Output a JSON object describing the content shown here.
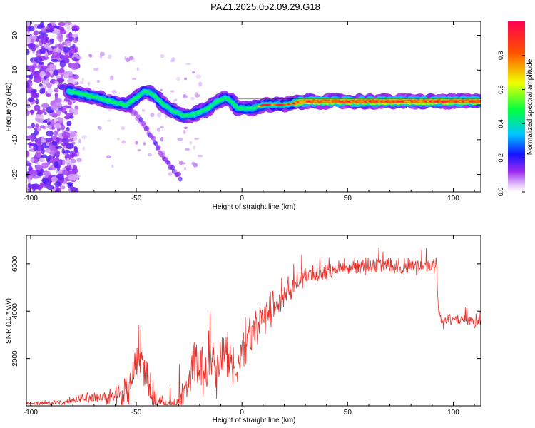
{
  "title": "PAZ1.2025.052.09.29.G18",
  "chart_data": [
    {
      "type": "heatmap",
      "xlabel": "Height of straight line (km)",
      "ylabel": "Frequency (Hz)",
      "xlim": [
        -102,
        113
      ],
      "ylim": [
        -25,
        24
      ],
      "xticks": [
        -100,
        -50,
        0,
        50,
        100
      ],
      "yticks": [
        -20,
        -10,
        0,
        10,
        20
      ],
      "colorbar": {
        "label": "Normalized spectral amplitude",
        "range": [
          0.0,
          1.0
        ],
        "ticks": [
          0.0,
          0.2,
          0.4,
          0.6,
          0.8
        ],
        "colors": [
          "#ffffff",
          "#cfa3f5",
          "#9c2bf0",
          "#1414ff",
          "#00c8ff",
          "#00ff40",
          "#f0ff00",
          "#ff5000",
          "#ff0050"
        ]
      },
      "ridge": {
        "x": [
          -82,
          -75,
          -68,
          -62,
          -55,
          -50,
          -46,
          -42,
          -37,
          -32,
          -28,
          -24,
          -20,
          -16,
          -12,
          -8,
          -5,
          -2,
          0,
          5,
          10,
          20,
          30,
          40,
          50,
          60,
          70,
          80,
          90,
          100,
          113
        ],
        "y": [
          4,
          3,
          2,
          1,
          0,
          2,
          4,
          3,
          0,
          -2,
          -3,
          -3,
          -2,
          -1,
          1,
          2,
          1,
          -1,
          -1,
          -1,
          0,
          0,
          1,
          1,
          1,
          1,
          1,
          1,
          1,
          1,
          1
        ]
      },
      "branch": {
        "x": [
          -55,
          -50,
          -46,
          -42,
          -38,
          -35,
          -32,
          -29
        ],
        "y": [
          0,
          -3,
          -6,
          -10,
          -14,
          -17,
          -19,
          -21
        ]
      }
    },
    {
      "type": "line",
      "xlabel": "Height of straight line (km)",
      "ylabel": "SNR (10 * v/v)",
      "xlim": [
        -102,
        113
      ],
      "ylim": [
        0,
        7200
      ],
      "xticks": [
        -100,
        -50,
        0,
        50,
        100
      ],
      "yticks": [
        2000,
        4000,
        6000
      ],
      "color": "#e8302a",
      "envelope": {
        "x": [
          -102,
          -90,
          -82,
          -78,
          -75,
          -72,
          -68,
          -64,
          -60,
          -56,
          -54,
          -52,
          -50,
          -48,
          -46,
          -44,
          -42,
          -40,
          -38,
          -35,
          -32,
          -30,
          -28,
          -26,
          -24,
          -22,
          -20,
          -18,
          -16,
          -14,
          -12,
          -10,
          -8,
          -6,
          -4,
          -2,
          0,
          2,
          5,
          8,
          12,
          16,
          20,
          25,
          30,
          35,
          40,
          45,
          50,
          55,
          60,
          65,
          70,
          75,
          80,
          85,
          90,
          92,
          93,
          95,
          97,
          100,
          105,
          110,
          113
        ],
        "y": [
          150,
          200,
          250,
          400,
          600,
          500,
          700,
          600,
          700,
          900,
          1200,
          1800,
          2200,
          2300,
          2000,
          1600,
          800,
          400,
          350,
          300,
          350,
          700,
          1200,
          1600,
          2200,
          2800,
          2400,
          2200,
          2600,
          3000,
          2500,
          2800,
          3200,
          3000,
          2800,
          3000,
          3300,
          3500,
          3800,
          4200,
          4600,
          4900,
          5200,
          5500,
          5800,
          5900,
          6000,
          6100,
          6150,
          6200,
          6200,
          6250,
          6200,
          6150,
          6150,
          6150,
          6200,
          6250,
          4200,
          3700,
          3900,
          3800,
          3900,
          3700,
          3800
        ]
      },
      "noise": {
        "x": [
          -102,
          -80,
          -70,
          -60,
          -52,
          -46,
          -40,
          -30,
          -24,
          -16,
          -8,
          0,
          10,
          20,
          30,
          60,
          92,
          93,
          113
        ],
        "amplitude": [
          60,
          150,
          350,
          450,
          900,
          1000,
          450,
          700,
          1100,
          1300,
          1400,
          1300,
          1000,
          700,
          500,
          400,
          400,
          300,
          250
        ]
      }
    }
  ]
}
